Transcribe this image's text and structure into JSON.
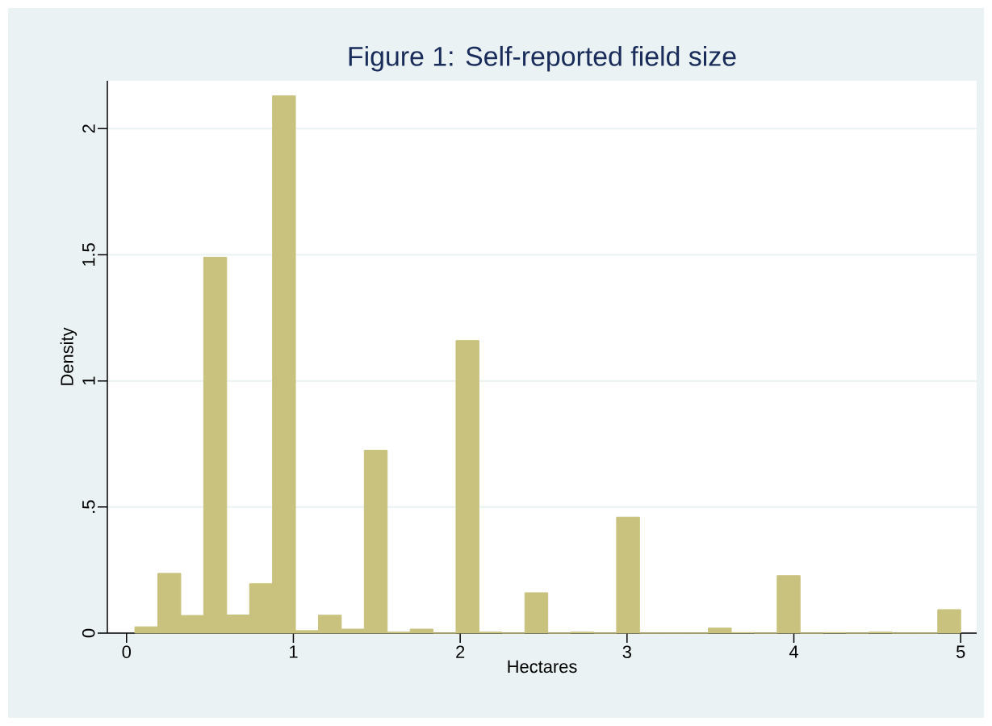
{
  "chart_data": {
    "type": "histogram",
    "title": "Figure 1: Self-reported field size",
    "xlabel": "Hectares",
    "ylabel": "Density",
    "bins": [
      0.05,
      0.1875,
      0.325,
      0.4625,
      0.6,
      0.7375,
      0.875,
      1.0125,
      1.15,
      1.2875,
      1.425,
      1.5625,
      1.7,
      1.8375,
      1.975,
      2.1125,
      2.25,
      2.3875,
      2.525,
      2.6625,
      2.8,
      2.9375,
      3.075,
      3.2125,
      3.35,
      3.4875,
      3.625,
      3.7625,
      3.9,
      4.0375,
      4.175,
      4.3125,
      4.45,
      4.5875,
      4.725,
      4.8625,
      5.0
    ],
    "values": [
      0.025,
      0.237,
      0.07,
      1.49,
      0.072,
      0.196,
      2.13,
      0.01,
      0.071,
      0.016,
      0.725,
      0.004,
      0.016,
      0,
      1.16,
      0.004,
      0,
      0.16,
      0,
      0.004,
      0,
      0.46,
      0,
      0,
      0,
      0.02,
      0.002,
      0,
      0.228,
      0,
      0.002,
      0,
      0.004,
      0,
      0,
      0.093
    ],
    "color": "#c9c27e",
    "xlim": [
      -0.115,
      5.096
    ],
    "ylim": [
      0,
      2.19
    ],
    "xticks": [
      0,
      1,
      2,
      3,
      4,
      5
    ],
    "yticks": [
      0,
      {
        "value": 0.5,
        "label": ".5"
      },
      1,
      {
        "value": 1.5,
        "label": "1.5"
      },
      2
    ],
    "grid": "y"
  }
}
